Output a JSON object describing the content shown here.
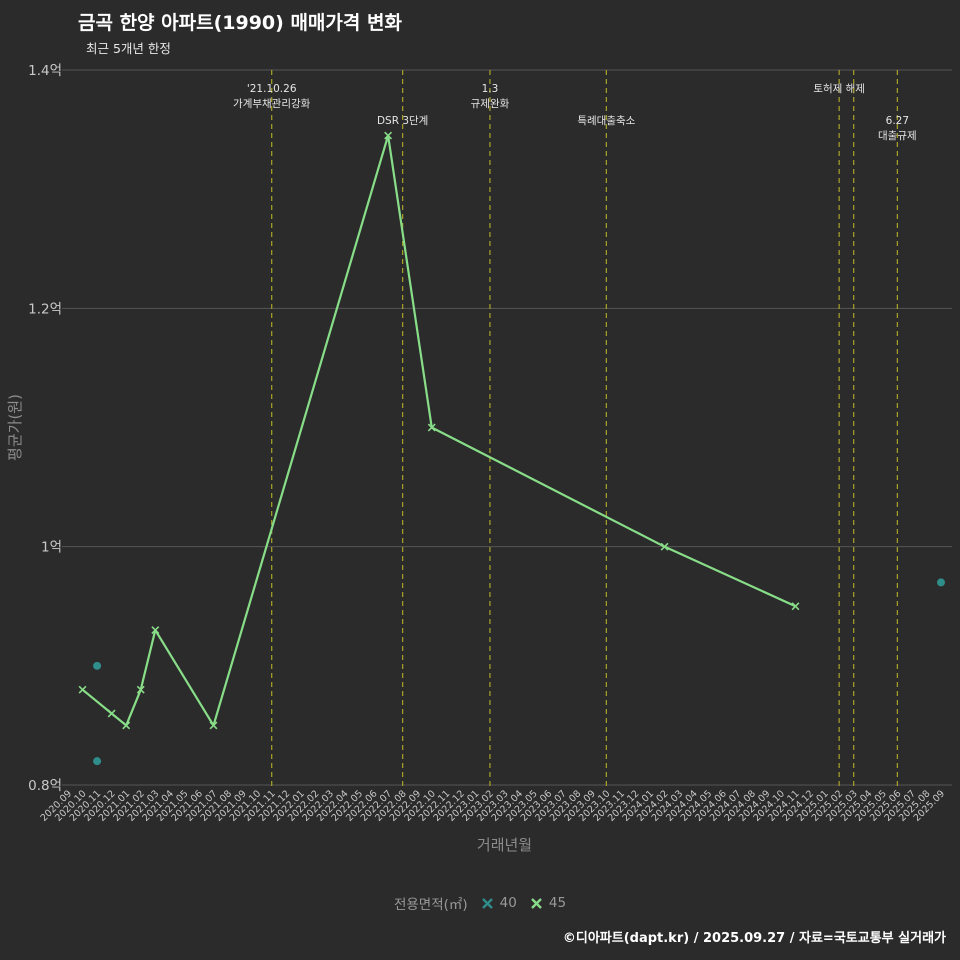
{
  "header": {
    "title": "금곡 한양 아파트(1990) 매매가격 변화",
    "subtitle": "최근 5개년 한정"
  },
  "footer": {
    "credit": "©디아파트(dapt.kr) / 2025.09.27 / 자료=국토교통부 실거래가"
  },
  "legend": {
    "label": "전용면적(㎡)",
    "items": [
      {
        "name": "40",
        "color": "#2f8d8a"
      },
      {
        "name": "45",
        "color": "#88dd88"
      }
    ]
  },
  "chart_data": {
    "type": "line",
    "title": "금곡 한양 아파트(1990) 매매가격 변화",
    "subtitle": "최근 5개년 한정",
    "xlabel": "거래년월",
    "ylabel": "평균가(원)",
    "unit": "억",
    "ylim_eok": [
      0.8,
      1.4
    ],
    "ytick_values": [
      0.8,
      1.0,
      1.2,
      1.4
    ],
    "ytick_labels": [
      "0.8억",
      "1억",
      "1.2억",
      "1.4억"
    ],
    "grid": true,
    "legend_position": "bottom",
    "colors": {
      "background": "#2b2b2b",
      "grid": "#565656",
      "tick": "#c9c9c9",
      "axis_title": "#8c8c8c",
      "vline": "#a8a428",
      "annotation": "#e6e6e6"
    },
    "categories": [
      "2020.09",
      "2020.10",
      "2020.11",
      "2020.12",
      "2021.01",
      "2021.02",
      "2021.03",
      "2021.04",
      "2021.05",
      "2021.06",
      "2021.07",
      "2021.08",
      "2021.09",
      "2021.10",
      "2021.11",
      "2021.12",
      "2022.01",
      "2022.02",
      "2022.03",
      "2022.04",
      "2022.05",
      "2022.06",
      "2022.07",
      "2022.08",
      "2022.09",
      "2022.10",
      "2022.11",
      "2022.12",
      "2023.01",
      "2023.02",
      "2023.03",
      "2023.04",
      "2023.05",
      "2023.06",
      "2023.07",
      "2023.08",
      "2023.09",
      "2023.10",
      "2023.11",
      "2023.12",
      "2024.01",
      "2024.02",
      "2024.03",
      "2024.04",
      "2024.05",
      "2024.06",
      "2024.07",
      "2024.08",
      "2024.09",
      "2024.10",
      "2024.11",
      "2024.12",
      "2025.01",
      "2025.02",
      "2025.03",
      "2025.04",
      "2025.05",
      "2025.06",
      "2025.07",
      "2025.08",
      "2025.09"
    ],
    "series": [
      {
        "name": "40",
        "mode": "scatter",
        "color": "#2f8d8a",
        "points": [
          {
            "x": "2020.11",
            "y": 0.9
          },
          {
            "x": "2020.11",
            "y": 0.82
          },
          {
            "x": "2025.09",
            "y": 0.97
          }
        ]
      },
      {
        "name": "45",
        "mode": "line",
        "color": "#88dd88",
        "points": [
          {
            "x": "2020.10",
            "y": 0.88
          },
          {
            "x": "2020.12",
            "y": 0.86
          },
          {
            "x": "2021.01",
            "y": 0.85
          },
          {
            "x": "2021.02",
            "y": 0.88
          },
          {
            "x": "2021.03",
            "y": 0.93
          },
          {
            "x": "2021.07",
            "y": 0.85
          },
          {
            "x": "2022.07",
            "y": 1.345
          },
          {
            "x": "2022.10",
            "y": 1.1
          },
          {
            "x": "2024.02",
            "y": 1.0
          },
          {
            "x": "2024.11",
            "y": 0.95
          }
        ]
      }
    ],
    "annotations": [
      {
        "x": "2021.11",
        "row": 0,
        "lines": [
          "'21.10.26",
          "가계부채관리강화"
        ]
      },
      {
        "x": "2022.08",
        "row": 1,
        "lines": [
          "DSR 3단계"
        ]
      },
      {
        "x": "2023.02",
        "row": 0,
        "lines": [
          "1.3",
          "규제완화"
        ]
      },
      {
        "x": "2023.10",
        "row": 1,
        "lines": [
          "특례대출축소"
        ]
      },
      {
        "x": "2025.02",
        "row": 0,
        "lines": [
          "토허제 해제"
        ]
      },
      {
        "x": "2025.03",
        "row": 0,
        "lines": []
      },
      {
        "x": "2025.06",
        "row": 1,
        "lines": [
          "6.27",
          "대출규제"
        ]
      }
    ]
  }
}
